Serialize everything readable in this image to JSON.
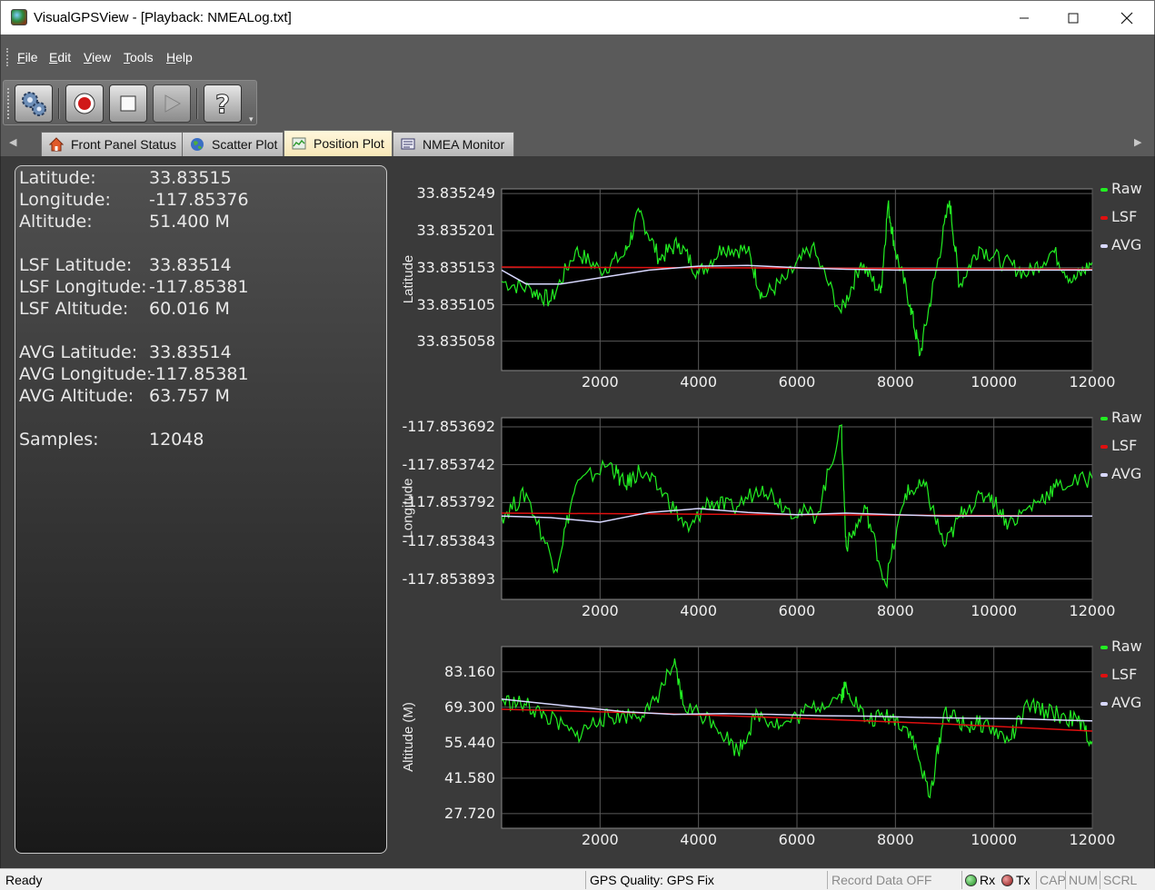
{
  "window": {
    "title": "VisualGPSView - [Playback: NMEALog.txt]"
  },
  "menu": [
    "File",
    "Edit",
    "View",
    "Tools",
    "Help"
  ],
  "toolbar": {
    "buttons": [
      "settings",
      "record",
      "stop",
      "play",
      "help"
    ]
  },
  "tabs": [
    {
      "label": "Front Panel Status",
      "icon": "home-icon"
    },
    {
      "label": "Scatter Plot",
      "icon": "globe-icon"
    },
    {
      "label": "Position Plot",
      "icon": "chart-icon",
      "active": true
    },
    {
      "label": "NMEA Monitor",
      "icon": "monitor-icon"
    }
  ],
  "side": {
    "latitude_label": "Latitude:",
    "latitude": "33.83515",
    "longitude_label": "Longitude:",
    "longitude": "-117.85376",
    "altitude_label": "Altitude:",
    "altitude": "51.400 M",
    "lsf_latitude_label": "LSF Latitude:",
    "lsf_latitude": "33.83514",
    "lsf_longitude_label": "LSF Longitude:",
    "lsf_longitude": "-117.85381",
    "lsf_altitude_label": "LSF Altitude:",
    "lsf_altitude": "60.016 M",
    "avg_latitude_label": "AVG Latitude:",
    "avg_latitude": "33.83514",
    "avg_longitude_label": "AVG Longitude:",
    "avg_longitude": "-117.85381",
    "avg_altitude_label": "AVG Altitude:",
    "avg_altitude": "63.757 M",
    "samples_label": "Samples:",
    "samples": "12048"
  },
  "colors": {
    "raw": "#22ee22",
    "lsf": "#e01010",
    "avg": "#d8d8ff"
  },
  "legend": [
    "Raw",
    "LSF",
    "AVG"
  ],
  "chart_data": [
    {
      "type": "line",
      "ylabel": "Latitude",
      "yticks": [
        "33.835249",
        "33.835201",
        "33.835153",
        "33.835105",
        "33.835058"
      ],
      "ylim": [
        33.83502,
        33.835255
      ],
      "xticks": [
        "2000",
        "4000",
        "6000",
        "8000",
        "10000",
        "12000"
      ],
      "xlim": [
        0,
        12000
      ],
      "grid": true,
      "legend_position": "right",
      "series": [
        {
          "name": "Raw",
          "x": [
            0,
            600,
            1000,
            1500,
            2000,
            2500,
            2800,
            3200,
            3600,
            4000,
            4500,
            5000,
            5300,
            5800,
            6300,
            6900,
            7300,
            7700,
            7850,
            8000,
            8300,
            8500,
            8800,
            9100,
            9300,
            9700,
            10200,
            10700,
            11200,
            11600,
            12000
          ],
          "y": [
            33.835135,
            33.835125,
            33.83511,
            33.835175,
            33.83515,
            33.83517,
            33.835225,
            33.835165,
            33.835185,
            33.835145,
            33.83518,
            33.835175,
            33.835115,
            33.83514,
            33.83518,
            33.835095,
            33.83516,
            33.83512,
            33.835235,
            33.835175,
            33.835105,
            33.83504,
            33.83514,
            33.83524,
            33.83513,
            33.83518,
            33.83516,
            33.835145,
            33.835175,
            33.835135,
            33.83516
          ]
        },
        {
          "name": "LSF",
          "x": [
            0,
            12000
          ],
          "y": [
            33.835154,
            33.835151
          ]
        },
        {
          "name": "AVG",
          "x": [
            0,
            500,
            1200,
            2000,
            3000,
            4000,
            5000,
            6000,
            7000,
            8000,
            9000,
            10000,
            11000,
            12000
          ],
          "y": [
            33.83515,
            33.835132,
            33.835132,
            33.83514,
            33.83515,
            33.835155,
            33.835156,
            33.835153,
            33.835151,
            33.83515,
            33.83515,
            33.83515,
            33.83515,
            33.83515
          ]
        }
      ]
    },
    {
      "type": "line",
      "ylabel": "Longitude",
      "yticks": [
        "-117.853692",
        "-117.853742",
        "-117.853792",
        "-117.853843",
        "-117.853893"
      ],
      "ylim": [
        -117.85392,
        -117.85368
      ],
      "xticks": [
        "2000",
        "4000",
        "6000",
        "8000",
        "10000",
        "12000"
      ],
      "xlim": [
        0,
        12000
      ],
      "grid": true,
      "legend_position": "right",
      "series": [
        {
          "name": "Raw",
          "x": [
            0,
            500,
            1100,
            1500,
            2200,
            2500,
            2800,
            3300,
            3800,
            4200,
            4700,
            5300,
            5800,
            6400,
            6900,
            7000,
            7400,
            7800,
            8200,
            8600,
            9000,
            9400,
            9900,
            10300,
            10900,
            11300,
            12000
          ],
          "y": [
            -117.85381,
            -117.85378,
            -117.85388,
            -117.85377,
            -117.85374,
            -117.85377,
            -117.85375,
            -117.85378,
            -117.85383,
            -117.85379,
            -117.8538,
            -117.85377,
            -117.8538,
            -117.85381,
            -117.85369,
            -117.85385,
            -117.8538,
            -117.8539,
            -117.85378,
            -117.85377,
            -117.85385,
            -117.8538,
            -117.85378,
            -117.85382,
            -117.85379,
            -117.85377,
            -117.85376
          ]
        },
        {
          "name": "LSF",
          "x": [
            0,
            6000,
            12000
          ],
          "y": [
            -117.853806,
            -117.853808,
            -117.85381
          ]
        },
        {
          "name": "AVG",
          "x": [
            0,
            1000,
            2000,
            3000,
            4000,
            5000,
            6000,
            7000,
            8000,
            9000,
            10000,
            11000,
            12000
          ],
          "y": [
            -117.85381,
            -117.853812,
            -117.853818,
            -117.853805,
            -117.8538,
            -117.853805,
            -117.853808,
            -117.853806,
            -117.853808,
            -117.85381,
            -117.85381,
            -117.85381,
            -117.85381
          ]
        }
      ]
    },
    {
      "type": "line",
      "ylabel": "Altitude (M)",
      "yticks": [
        "83.160",
        "69.300",
        "55.440",
        "41.580",
        "27.720"
      ],
      "ylim": [
        22.0,
        93.0
      ],
      "xticks": [
        "2000",
        "4000",
        "6000",
        "8000",
        "10000",
        "12000"
      ],
      "xlim": [
        0,
        12000
      ],
      "grid": true,
      "legend_position": "right",
      "series": [
        {
          "name": "Raw",
          "x": [
            0,
            500,
            900,
            1500,
            2000,
            2500,
            3000,
            3500,
            3700,
            4300,
            4800,
            5200,
            5700,
            6300,
            6900,
            7000,
            7400,
            7900,
            8300,
            8700,
            9000,
            9400,
            9800,
            10300,
            10700,
            11200,
            11700,
            12000
          ],
          "y": [
            72,
            70,
            66,
            58,
            65,
            66,
            68,
            86,
            70,
            64,
            52,
            67,
            62,
            69,
            74,
            78,
            64,
            66,
            60,
            34,
            68,
            62,
            63,
            56,
            70,
            67,
            64,
            56
          ]
        },
        {
          "name": "LSF",
          "x": [
            0,
            3000,
            6000,
            9000,
            12000
          ],
          "y": [
            68.5,
            67.0,
            65.0,
            62.8,
            60.0
          ]
        },
        {
          "name": "AVG",
          "x": [
            0,
            500,
            1500,
            2500,
            3500,
            4500,
            5500,
            6500,
            7500,
            8500,
            9500,
            10500,
            11500,
            12000
          ],
          "y": [
            72.5,
            71.5,
            69.5,
            67.5,
            66.5,
            66.8,
            66.5,
            66.0,
            65.8,
            65.3,
            65.0,
            64.8,
            64.2,
            64.0
          ]
        }
      ]
    }
  ],
  "status": {
    "ready": "Ready",
    "gps_quality": "GPS Quality: GPS Fix",
    "record": "Record Data OFF",
    "rx": "Rx",
    "tx": "Tx",
    "cap": "CAP",
    "num": "NUM",
    "scrl": "SCRL"
  }
}
